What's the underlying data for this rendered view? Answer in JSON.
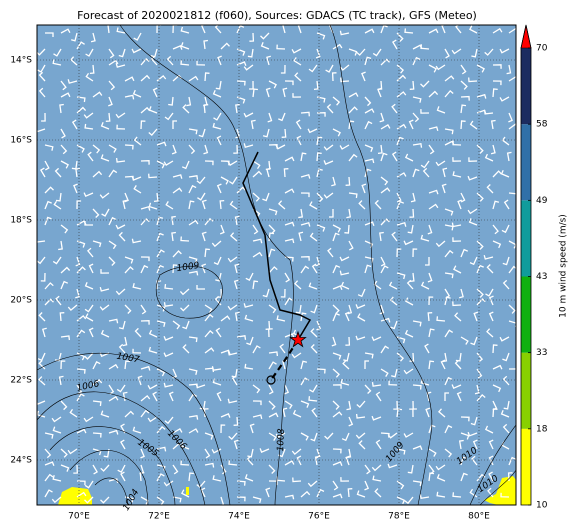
{
  "title": "Forecast of 2020021812 (f060), Sources: GDACS (TC track), GFS (Meteo)",
  "map": {
    "xlim": [
      68.95,
      80.925
    ],
    "ylim": [
      -25.125,
      -13.125
    ],
    "xticks": [
      {
        "value": 70,
        "label": "70°E"
      },
      {
        "value": 72,
        "label": "72°E"
      },
      {
        "value": 74,
        "label": "74°E"
      },
      {
        "value": 76,
        "label": "76°E"
      },
      {
        "value": 78,
        "label": "78°E"
      },
      {
        "value": 80,
        "label": "80°E"
      }
    ],
    "yticks": [
      {
        "value": -14,
        "label": "14°S"
      },
      {
        "value": -16,
        "label": "16°S"
      },
      {
        "value": -18,
        "label": "18°S"
      },
      {
        "value": -20,
        "label": "20°S"
      },
      {
        "value": -22,
        "label": "22°S"
      },
      {
        "value": -24,
        "label": "24°S"
      }
    ],
    "track": {
      "lon": [
        74.475,
        74.1,
        74.65,
        74.775,
        75.025,
        75.525,
        75.775,
        75.475
      ],
      "lat": [
        -16.3,
        -17.075,
        -18.375,
        -19.5,
        -20.25,
        -20.375,
        -20.5,
        -21.0
      ]
    },
    "forecast_track": {
      "lon": [
        75.475,
        75.15,
        74.8
      ],
      "lat": [
        -21.0,
        -21.5,
        -22.0
      ]
    },
    "contour_labels": [
      "1009",
      "1007",
      "1006",
      "1005",
      "1006",
      "1004",
      "1008",
      "1009",
      "1010",
      "1010"
    ]
  },
  "colorbar": {
    "label": "10 m wind speed (m/s)",
    "ticks": [
      10,
      18,
      33,
      43,
      49,
      58,
      70
    ],
    "colors": [
      "#ffff00",
      "#88d000",
      "#10b010",
      "#109c9c",
      "#3070a8",
      "#1c2c60"
    ],
    "extend_color": "#ff0000"
  }
}
